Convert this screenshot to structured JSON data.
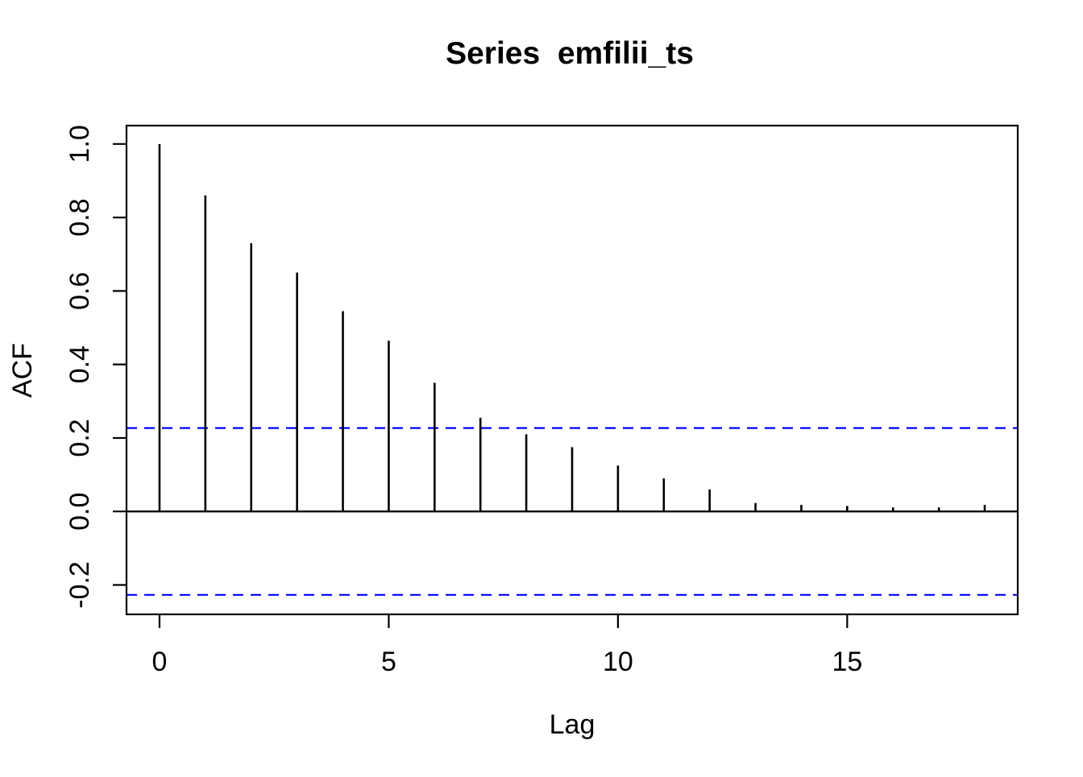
{
  "chart_data": {
    "type": "bar",
    "variant": "acf-stem-plot",
    "title": "Series  emfilii_ts",
    "xlabel": "Lag",
    "ylabel": "ACF",
    "lags": [
      0,
      1,
      2,
      3,
      4,
      5,
      6,
      7,
      8,
      9,
      10,
      11,
      12,
      13,
      14,
      15,
      16,
      17,
      18
    ],
    "acf_values": [
      1.0,
      0.86,
      0.73,
      0.65,
      0.545,
      0.465,
      0.35,
      0.255,
      0.21,
      0.175,
      0.125,
      0.09,
      0.06,
      0.023,
      0.018,
      0.015,
      0.011,
      0.011,
      0.018
    ],
    "confidence_bounds": {
      "upper": 0.227,
      "lower": -0.227
    },
    "x_tick_values": [
      0,
      5,
      10,
      15
    ],
    "x_tick_labels": [
      "0",
      "5",
      "10",
      "15"
    ],
    "y_tick_values": [
      -0.2,
      0.0,
      0.2,
      0.4,
      0.6,
      0.8,
      1.0
    ],
    "y_tick_labels": [
      "-0.2",
      "0.0",
      "0.2",
      "0.4",
      "0.6",
      "0.8",
      "1.0"
    ],
    "xlim": [
      -0.72,
      18.72
    ],
    "ylim": [
      -0.28,
      1.05
    ],
    "grid": false,
    "legend": "none",
    "colors": {
      "bars": "#000000",
      "axis": "#000000",
      "text": "#000000",
      "confidence_lines": "#0000FF",
      "background": "#FFFFFF"
    }
  }
}
